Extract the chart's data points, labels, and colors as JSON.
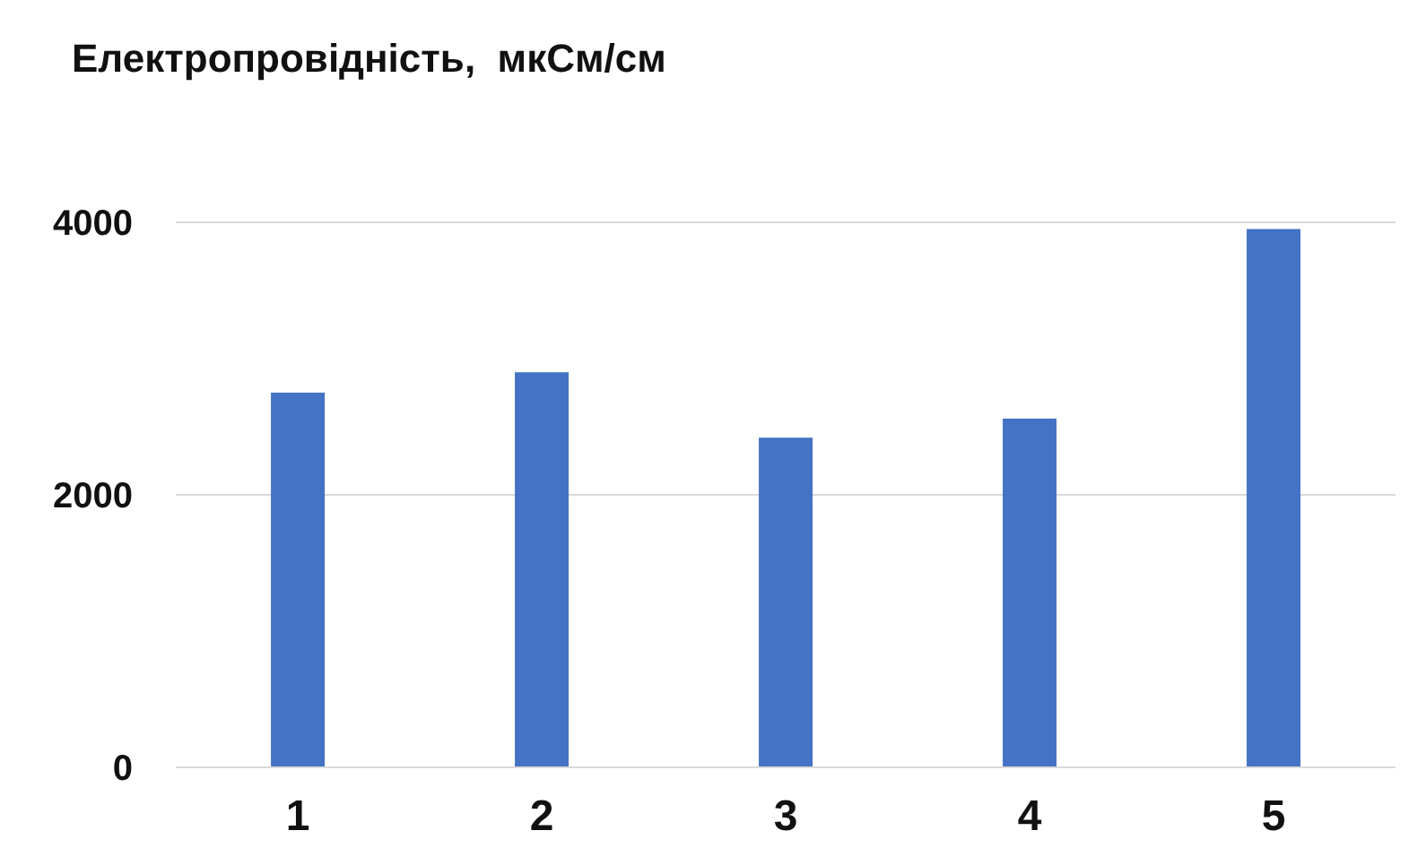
{
  "chart_data": {
    "type": "bar",
    "title": "Електропровідність,  мкСм/см",
    "categories": [
      "1",
      "2",
      "3",
      "4",
      "5"
    ],
    "values": [
      2750,
      2900,
      2420,
      2560,
      3950
    ],
    "color": "#4472c4",
    "ylim": [
      0,
      4000
    ],
    "yticks": [
      0,
      2000,
      4000
    ],
    "grid": "y"
  }
}
